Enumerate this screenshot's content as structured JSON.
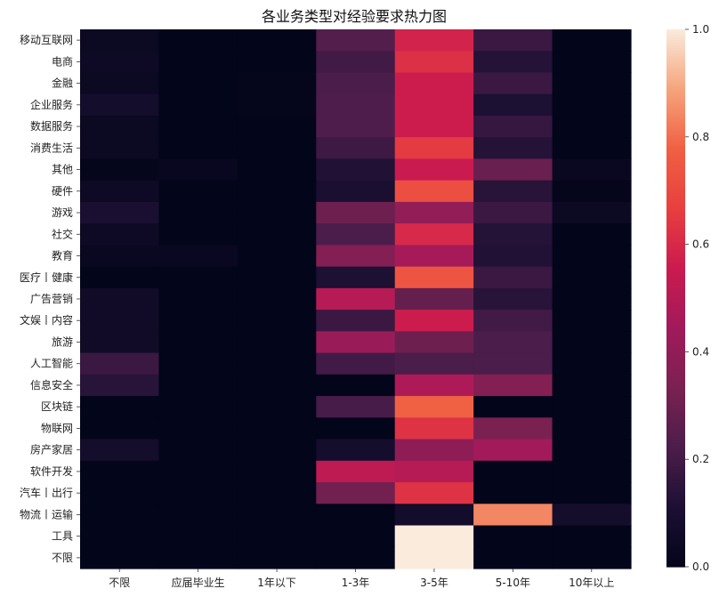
{
  "chart_data": {
    "type": "heatmap",
    "title": "各业务类型对经验要求热力图",
    "xlabel": "",
    "ylabel": "",
    "x_categories": [
      "不限",
      "应届毕业生",
      "1年以下",
      "1-3年",
      "3-5年",
      "5-10年",
      "10年以上"
    ],
    "y_categories": [
      "移动互联网",
      "电商",
      "金融",
      "企业服务",
      "数据服务",
      "消费生活",
      "其他",
      "硬件",
      "游戏",
      "社交",
      "教育",
      "医疗丨健康",
      "广告营销",
      "文娱丨内容",
      "旅游",
      "人工智能",
      "信息安全",
      "区块链",
      "物联网",
      "房产家居",
      "软件开发",
      "汽车丨出行",
      "物流丨运输",
      "工具",
      "不限"
    ],
    "values": [
      [
        0.04,
        0.0,
        0.0,
        0.24,
        0.58,
        0.18,
        0.0
      ],
      [
        0.05,
        0.0,
        0.0,
        0.2,
        0.62,
        0.13,
        0.0
      ],
      [
        0.04,
        0.0,
        0.01,
        0.22,
        0.56,
        0.18,
        0.0
      ],
      [
        0.08,
        0.0,
        0.01,
        0.23,
        0.56,
        0.11,
        0.0
      ],
      [
        0.04,
        0.0,
        0.0,
        0.23,
        0.56,
        0.17,
        0.0
      ],
      [
        0.04,
        0.0,
        0.0,
        0.19,
        0.65,
        0.13,
        0.0
      ],
      [
        0.01,
        0.02,
        0.0,
        0.12,
        0.55,
        0.29,
        0.03
      ],
      [
        0.05,
        0.0,
        0.0,
        0.1,
        0.72,
        0.14,
        0.01
      ],
      [
        0.1,
        0.0,
        0.0,
        0.3,
        0.4,
        0.18,
        0.04
      ],
      [
        0.05,
        0.0,
        0.0,
        0.22,
        0.6,
        0.13,
        0.0
      ],
      [
        0.03,
        0.03,
        0.0,
        0.36,
        0.46,
        0.12,
        0.0
      ],
      [
        0.0,
        0.0,
        0.0,
        0.11,
        0.74,
        0.18,
        0.0
      ],
      [
        0.06,
        0.0,
        0.0,
        0.5,
        0.28,
        0.14,
        0.0
      ],
      [
        0.06,
        0.0,
        0.0,
        0.18,
        0.56,
        0.2,
        0.0
      ],
      [
        0.06,
        0.0,
        0.0,
        0.42,
        0.3,
        0.22,
        0.0
      ],
      [
        0.18,
        0.0,
        0.0,
        0.2,
        0.22,
        0.22,
        0.0
      ],
      [
        0.14,
        0.0,
        0.0,
        0.0,
        0.48,
        0.36,
        0.0
      ],
      [
        0.0,
        0.0,
        0.0,
        0.21,
        0.78,
        0.0,
        0.0
      ],
      [
        0.0,
        0.0,
        0.0,
        0.0,
        0.63,
        0.33,
        0.0
      ],
      [
        0.08,
        0.0,
        0.0,
        0.08,
        0.39,
        0.45,
        0.0
      ],
      [
        0.0,
        0.0,
        0.0,
        0.52,
        0.5,
        0.0,
        0.0
      ],
      [
        0.0,
        0.0,
        0.0,
        0.31,
        0.63,
        0.0,
        0.0
      ],
      [
        0.0,
        0.0,
        0.0,
        0.0,
        0.07,
        0.84,
        0.08
      ],
      [
        0.0,
        0.0,
        0.0,
        0.0,
        1.0,
        0.0,
        0.0
      ],
      [
        0.0,
        0.0,
        0.0,
        0.0,
        1.0,
        0.0,
        0.0
      ]
    ],
    "vmin": 0.0,
    "vmax": 1.0,
    "colorbar": {
      "ticks": [
        0.0,
        0.2,
        0.4,
        0.6,
        0.8,
        1.0
      ],
      "tick_labels": [
        "0.0",
        "0.2",
        "0.4",
        "0.6",
        "0.8",
        "1.0"
      ]
    },
    "colormap": "rocket",
    "colormap_stops": [
      "#03051a",
      "#1c1033",
      "#4c1d4b",
      "#7b2151",
      "#a11a5b",
      "#cb1b4f",
      "#e83f3f",
      "#f06043",
      "#f6a47c",
      "#faebdd"
    ],
    "grid": false,
    "legend": "colorbar-right"
  }
}
